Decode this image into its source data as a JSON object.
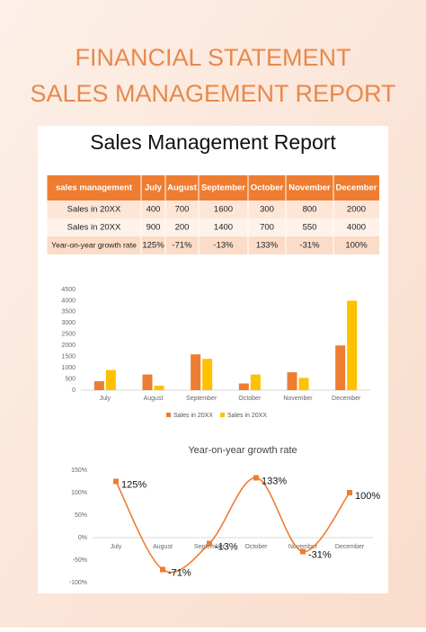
{
  "header": {
    "title_lines": [
      "FINANCIAL STATEMENT",
      "SALES MANAGEMENT REPORT"
    ]
  },
  "document": {
    "title": "Sales Management Report"
  },
  "table": {
    "header": [
      "sales management",
      "July",
      "August",
      "September",
      "October",
      "November",
      "December"
    ],
    "rows": [
      [
        "Sales in 20XX",
        "400",
        "700",
        "1600",
        "300",
        "800",
        "2000"
      ],
      [
        "Sales in 20XX",
        "900",
        "200",
        "1400",
        "700",
        "550",
        "4000"
      ],
      [
        "Year-on-year growth rate",
        "125%",
        "-71%",
        "-13%",
        "133%",
        "-31%",
        "100%"
      ]
    ]
  },
  "chart_data": [
    {
      "type": "bar",
      "categories": [
        "July",
        "August",
        "September",
        "October",
        "November",
        "December"
      ],
      "series": [
        {
          "name": "Sales in 20XX",
          "color": "#ed7d31",
          "values": [
            400,
            700,
            1600,
            300,
            800,
            2000
          ]
        },
        {
          "name": "Sales in 20XX",
          "color": "#ffc000",
          "values": [
            900,
            200,
            1400,
            700,
            550,
            4000
          ]
        }
      ],
      "ylim": [
        0,
        4500
      ],
      "yticks": [
        0,
        500,
        1000,
        1500,
        2000,
        2500,
        3000,
        3500,
        4000,
        4500
      ],
      "legend": "bottom"
    },
    {
      "type": "line",
      "title": "Year-on-year growth rate",
      "categories": [
        "July",
        "August",
        "September",
        "October",
        "November",
        "December"
      ],
      "color": "#ed7d31",
      "values": [
        125,
        -71,
        -13,
        133,
        -31,
        100
      ],
      "value_labels": [
        "125%",
        "-71%",
        "-13%",
        "133%",
        "-31%",
        "100%"
      ],
      "ylim": [
        -100,
        150
      ],
      "yticks": [
        {
          "value": -100,
          "label": "-100%"
        },
        {
          "value": -50,
          "label": "-50%"
        },
        {
          "value": 0,
          "label": "0%"
        },
        {
          "value": 50,
          "label": "50%"
        },
        {
          "value": 100,
          "label": "100%"
        },
        {
          "value": 150,
          "label": "150%"
        }
      ],
      "smooth": true
    }
  ]
}
